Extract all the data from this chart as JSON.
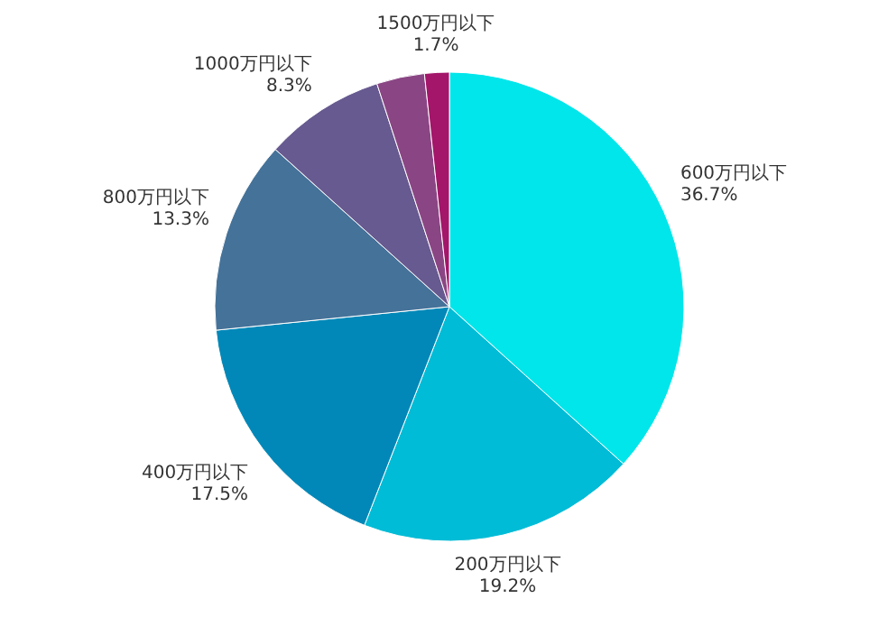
{
  "chart_data": {
    "type": "pie",
    "categories": [
      "600万円以下",
      "200万円以下",
      "400万円以下",
      "800万円以下",
      "1000万円以下",
      null,
      "1500万円以下"
    ],
    "values": [
      36.7,
      19.2,
      17.5,
      13.3,
      8.3,
      3.3,
      1.7
    ],
    "value_labels": [
      "36.7%",
      "19.2%",
      "17.5%",
      "13.3%",
      "8.3%",
      null,
      "1.7%"
    ],
    "colors": [
      "#00e6ea",
      "#00bcd6",
      "#0288b8",
      "#457299",
      "#675a90",
      "#8a4684",
      "#a3166a"
    ]
  }
}
